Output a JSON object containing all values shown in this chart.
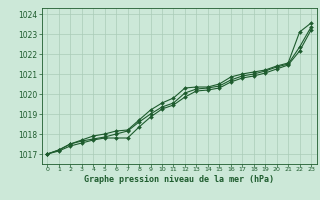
{
  "xlabel": "Graphe pression niveau de la mer (hPa)",
  "bg_color": "#cce8d8",
  "grid_color": "#aaccb8",
  "line_color": "#1e5c2e",
  "xlim": [
    -0.5,
    23.5
  ],
  "ylim": [
    1016.5,
    1024.3
  ],
  "yticks": [
    1017,
    1018,
    1019,
    1020,
    1021,
    1022,
    1023,
    1024
  ],
  "xticks": [
    0,
    1,
    2,
    3,
    4,
    5,
    6,
    7,
    8,
    9,
    10,
    11,
    12,
    13,
    14,
    15,
    16,
    17,
    18,
    19,
    20,
    21,
    22,
    23
  ],
  "series1": [
    1017.0,
    1017.2,
    1017.5,
    1017.7,
    1017.9,
    1018.0,
    1018.15,
    1018.2,
    1018.7,
    1019.2,
    1019.55,
    1019.8,
    1020.3,
    1020.35,
    1020.35,
    1020.5,
    1020.85,
    1021.0,
    1021.1,
    1021.2,
    1021.4,
    1021.55,
    1023.1,
    1023.55
  ],
  "series2": [
    1017.0,
    1017.2,
    1017.5,
    1017.65,
    1017.75,
    1017.85,
    1018.0,
    1018.15,
    1018.6,
    1019.0,
    1019.35,
    1019.55,
    1020.05,
    1020.25,
    1020.3,
    1020.4,
    1020.7,
    1020.9,
    1021.0,
    1021.15,
    1021.35,
    1021.5,
    1022.35,
    1023.35
  ],
  "series3": [
    1017.0,
    1017.15,
    1017.4,
    1017.55,
    1017.7,
    1017.8,
    1017.8,
    1017.8,
    1018.35,
    1018.85,
    1019.25,
    1019.45,
    1019.85,
    1020.15,
    1020.2,
    1020.3,
    1020.6,
    1020.8,
    1020.9,
    1021.05,
    1021.25,
    1021.45,
    1022.15,
    1023.2
  ]
}
